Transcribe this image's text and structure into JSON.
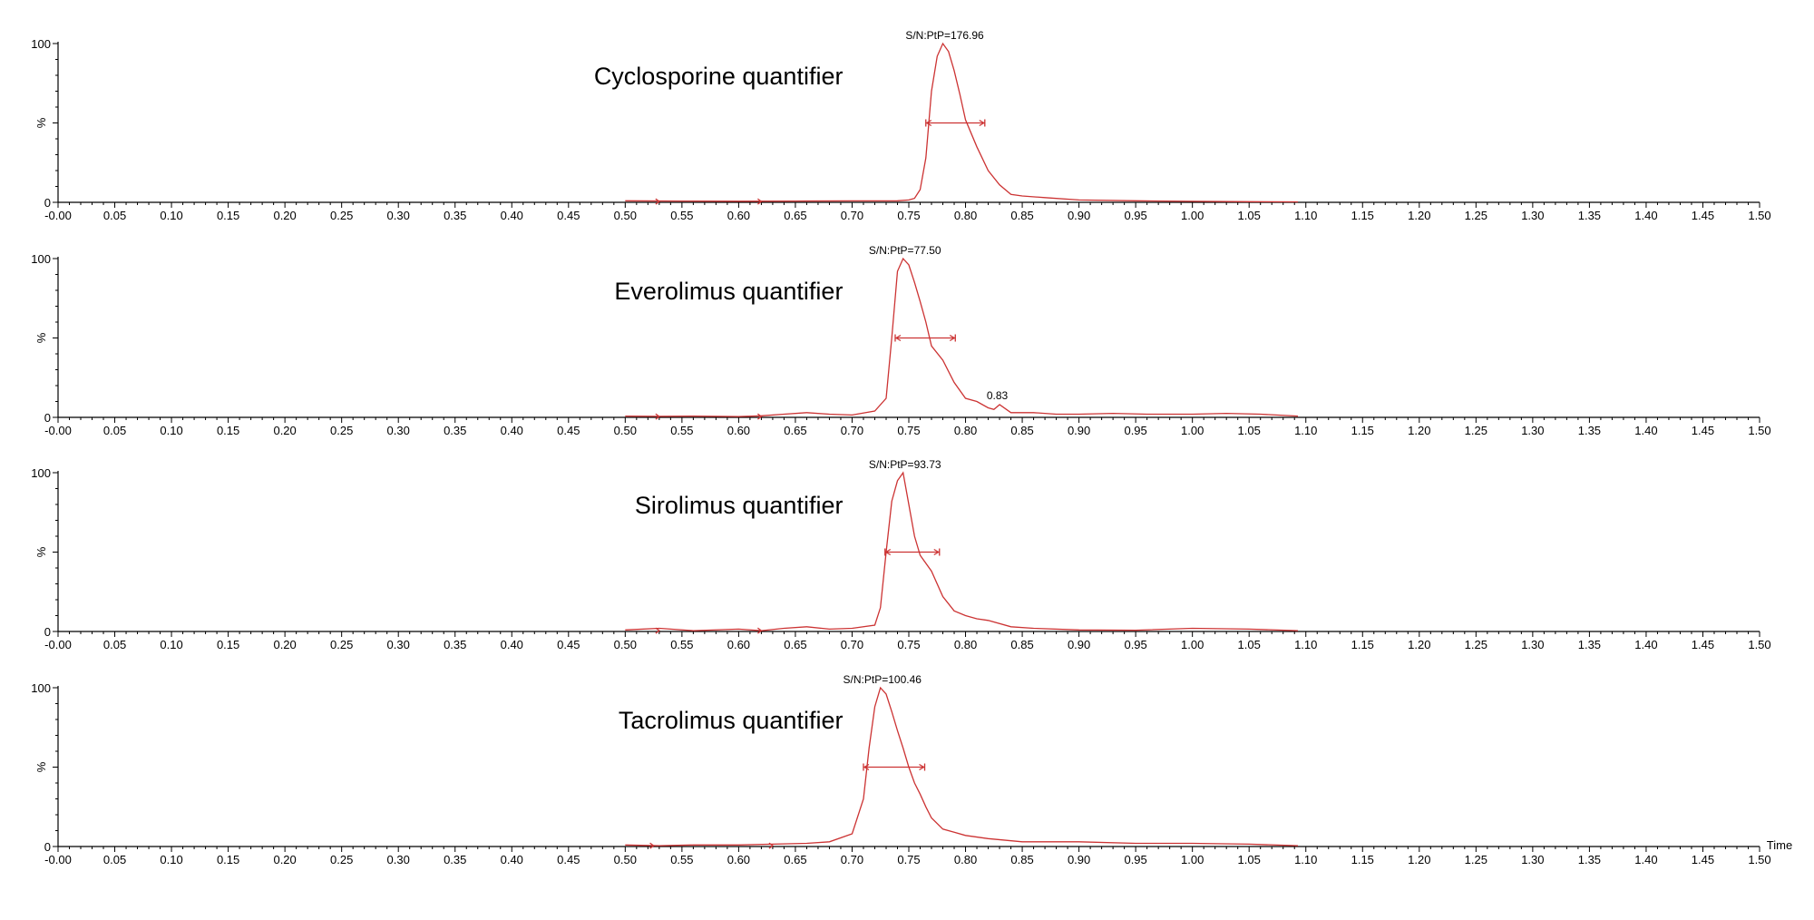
{
  "x_axis": {
    "label": "Time",
    "min": 0,
    "max": 1.5,
    "major_step": 0.05,
    "minor_step": 0.01,
    "tick_labels": [
      "-0.00",
      "0.05",
      "0.10",
      "0.15",
      "0.20",
      "0.25",
      "0.30",
      "0.35",
      "0.40",
      "0.45",
      "0.50",
      "0.55",
      "0.60",
      "0.65",
      "0.70",
      "0.75",
      "0.80",
      "0.85",
      "0.90",
      "0.95",
      "1.00",
      "1.05",
      "1.10",
      "1.15",
      "1.20",
      "1.25",
      "1.30",
      "1.35",
      "1.40",
      "1.45",
      "1.50"
    ]
  },
  "y_axis": {
    "label": "%",
    "ticks": [
      "100",
      "0"
    ]
  },
  "colors": {
    "trace": "#cc3333",
    "axis": "#000000"
  },
  "chart_data": [
    {
      "type": "line",
      "title": "Cyclosporine quantifier",
      "sn_label": "S/N:PtP=176.96",
      "peak_label": "",
      "peak_label_at": null,
      "ylim": [
        0,
        100
      ],
      "integration_markers": [
        0.53,
        0.62
      ],
      "peak_width_bar": [
        0.765,
        0.817
      ],
      "x": [
        0.5,
        0.55,
        0.6,
        0.65,
        0.7,
        0.74,
        0.75,
        0.755,
        0.76,
        0.765,
        0.77,
        0.775,
        0.78,
        0.785,
        0.79,
        0.795,
        0.8,
        0.81,
        0.82,
        0.83,
        0.84,
        0.85,
        0.87,
        0.9,
        0.95,
        1.0,
        1.05,
        1.093
      ],
      "y": [
        1,
        0.8,
        0.7,
        0.8,
        0.9,
        1,
        1.5,
        2.5,
        8,
        28,
        70,
        92,
        100,
        95,
        83,
        68,
        52,
        35,
        20,
        11,
        5,
        4,
        3,
        1.5,
        1,
        0.6,
        0.4,
        0.3
      ]
    },
    {
      "type": "line",
      "title": "Everolimus quantifier",
      "sn_label": "S/N:PtP=77.50",
      "peak_label": "0.83",
      "peak_label_at": [
        0.828,
        8
      ],
      "ylim": [
        0,
        100
      ],
      "integration_markers": [
        0.53,
        0.62
      ],
      "peak_width_bar": [
        0.738,
        0.791
      ],
      "x": [
        0.5,
        0.53,
        0.56,
        0.6,
        0.62,
        0.64,
        0.66,
        0.68,
        0.7,
        0.72,
        0.73,
        0.735,
        0.74,
        0.745,
        0.75,
        0.755,
        0.76,
        0.765,
        0.77,
        0.78,
        0.79,
        0.8,
        0.81,
        0.82,
        0.825,
        0.83,
        0.84,
        0.86,
        0.88,
        0.9,
        0.93,
        0.96,
        1.0,
        1.03,
        1.06,
        1.093
      ],
      "y": [
        0.8,
        0.6,
        0.8,
        0.5,
        1,
        2,
        3,
        2,
        1.5,
        4,
        12,
        50,
        92,
        100,
        96,
        85,
        73,
        60,
        45,
        36,
        22,
        12,
        10,
        6,
        5,
        8,
        3,
        3,
        2,
        2,
        2.5,
        2,
        2,
        2.5,
        2,
        0.8
      ]
    },
    {
      "type": "line",
      "title": "Sirolimus quantifier",
      "sn_label": "S/N:PtP=93.73",
      "peak_label": "",
      "peak_label_at": null,
      "ylim": [
        0,
        100
      ],
      "integration_markers": [
        0.53,
        0.62
      ],
      "peak_width_bar": [
        0.729,
        0.777
      ],
      "x": [
        0.5,
        0.53,
        0.56,
        0.6,
        0.62,
        0.64,
        0.66,
        0.68,
        0.7,
        0.72,
        0.725,
        0.73,
        0.735,
        0.74,
        0.745,
        0.75,
        0.755,
        0.76,
        0.77,
        0.78,
        0.79,
        0.8,
        0.81,
        0.82,
        0.84,
        0.86,
        0.9,
        0.95,
        1.0,
        1.05,
        1.093
      ],
      "y": [
        1,
        2,
        0.5,
        1.5,
        0.5,
        2,
        3,
        1.5,
        2,
        4,
        15,
        50,
        82,
        95,
        100,
        80,
        60,
        48,
        38,
        22,
        13,
        10,
        8,
        7,
        3,
        2,
        1,
        0.8,
        2,
        1.5,
        0.5
      ]
    },
    {
      "type": "line",
      "title": "Tacrolimus quantifier",
      "sn_label": "S/N:PtP=100.46",
      "peak_label": "",
      "peak_label_at": null,
      "ylim": [
        0,
        100
      ],
      "integration_markers": [
        0.525,
        0.63
      ],
      "peak_width_bar": [
        0.71,
        0.764
      ],
      "x": [
        0.5,
        0.53,
        0.56,
        0.6,
        0.63,
        0.66,
        0.68,
        0.7,
        0.71,
        0.715,
        0.72,
        0.725,
        0.73,
        0.735,
        0.74,
        0.745,
        0.75,
        0.755,
        0.76,
        0.765,
        0.77,
        0.78,
        0.79,
        0.8,
        0.82,
        0.85,
        0.9,
        0.95,
        1.0,
        1.05,
        1.093
      ],
      "y": [
        1,
        0.5,
        1,
        1,
        1.5,
        2,
        3,
        8,
        30,
        62,
        88,
        100,
        96,
        85,
        73,
        62,
        50,
        40,
        33,
        25,
        18,
        11,
        9,
        7,
        5,
        3,
        3,
        2,
        2,
        1.5,
        0.5
      ]
    }
  ]
}
